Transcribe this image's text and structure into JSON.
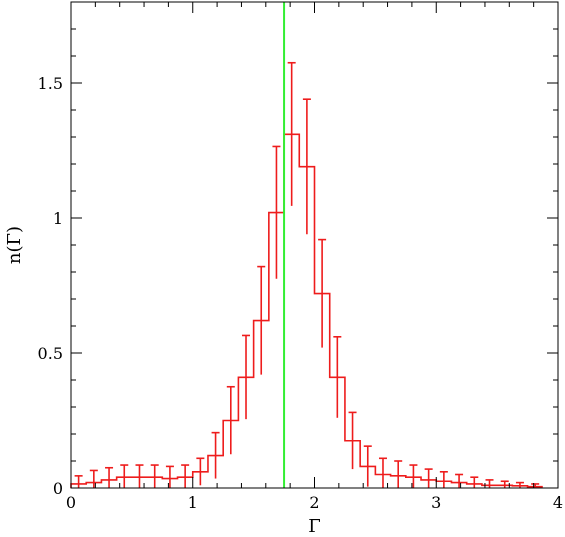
{
  "chart_data": {
    "type": "histogram",
    "xlabel": "Γ",
    "ylabel": "n(Γ)",
    "xlim": [
      0,
      4
    ],
    "ylim": [
      0,
      1.8
    ],
    "x_ticks": [
      {
        "value": 0,
        "label": "0"
      },
      {
        "value": 1,
        "label": "1"
      },
      {
        "value": 2,
        "label": "2"
      },
      {
        "value": 3,
        "label": "3"
      },
      {
        "value": 4,
        "label": "4"
      }
    ],
    "y_ticks": [
      {
        "value": 0,
        "label": "0"
      },
      {
        "value": 0.5,
        "label": "0.5"
      },
      {
        "value": 1,
        "label": "1"
      },
      {
        "value": 1.5,
        "label": "1.5"
      }
    ],
    "bin_width": 0.125,
    "bin_start": 0,
    "values": [
      0.015,
      0.02,
      0.03,
      0.04,
      0.04,
      0.04,
      0.035,
      0.04,
      0.06,
      0.12,
      0.25,
      0.41,
      0.62,
      1.02,
      1.31,
      1.19,
      0.72,
      0.41,
      0.175,
      0.08,
      0.05,
      0.045,
      0.04,
      0.03,
      0.025,
      0.02,
      0.015,
      0.01,
      0.01,
      0.008,
      0.005
    ],
    "errors": [
      0.03,
      0.045,
      0.045,
      0.045,
      0.045,
      0.045,
      0.045,
      0.045,
      0.05,
      0.085,
      0.125,
      0.155,
      0.2,
      0.245,
      0.265,
      0.25,
      0.2,
      0.15,
      0.105,
      0.075,
      0.06,
      0.055,
      0.045,
      0.04,
      0.035,
      0.03,
      0.025,
      0.02,
      0.015,
      0.012,
      0.01
    ],
    "reference_line": {
      "x": 1.75,
      "color": "#33ee33"
    },
    "series_color": "#ee1c1c",
    "grid": false
  }
}
